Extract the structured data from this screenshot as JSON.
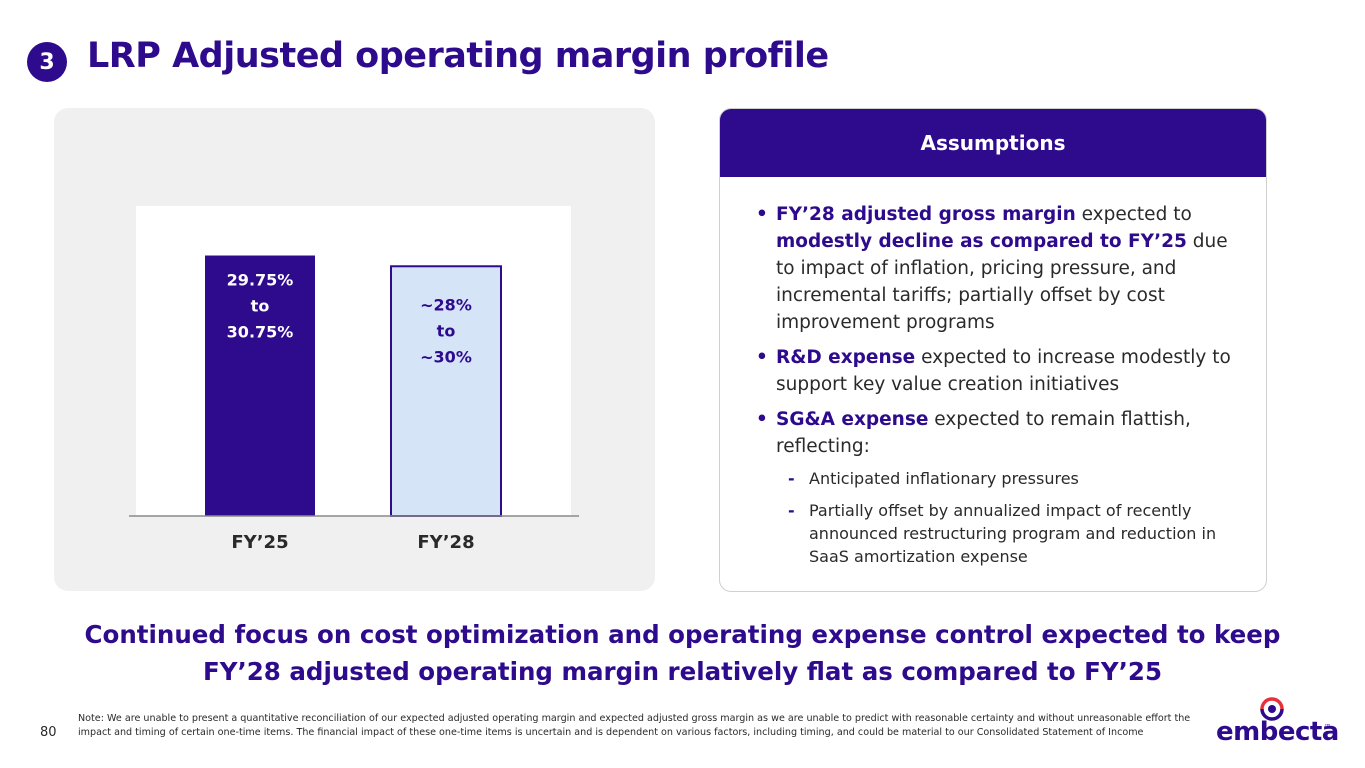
{
  "header": {
    "step_number": "3",
    "title": "LRP Adjusted operating margin profile"
  },
  "chart_data": {
    "type": "bar",
    "categories": [
      "FY’25",
      "FY’28"
    ],
    "series": [
      {
        "values": [
          30.25,
          29.0
        ]
      }
    ],
    "data_labels": [
      [
        "29.75%",
        "to",
        "30.75%"
      ],
      [
        "~28%",
        "to",
        "~30%"
      ]
    ],
    "ylim": [
      0,
      36
    ],
    "grid": false,
    "colors": {
      "fy25": "#2e0a8c",
      "fy28_fill": "#d6e4f8",
      "fy28_border": "#2e0a8c"
    }
  },
  "assumptions": {
    "title": "Assumptions",
    "bullets": [
      {
        "parts": [
          {
            "t": "FY’28 adjusted gross margin",
            "hl": true
          },
          {
            "t": " expected to ",
            "hl": false
          },
          {
            "t": "modestly decline as compared to FY’25",
            "hl": true
          },
          {
            "t": " due to impact of inflation, pricing pressure, and incremental tariffs; partially offset by cost improvement programs",
            "hl": false
          }
        ]
      },
      {
        "parts": [
          {
            "t": "R&D expense",
            "hl": true
          },
          {
            "t": " expected to increase modestly to support key value creation initiatives",
            "hl": false
          }
        ]
      },
      {
        "parts": [
          {
            "t": "SG&A expense",
            "hl": true
          },
          {
            "t": " expected to remain flattish, reflecting:",
            "hl": false
          }
        ],
        "sub": [
          "Anticipated inflationary pressures",
          "Partially offset by annualized impact of recently announced restructuring program and reduction in SaaS amortization expense"
        ]
      }
    ]
  },
  "conclusion": {
    "line1": "Continued focus on cost optimization and operating expense control expected to keep",
    "line2": "FY’28 adjusted operating margin relatively flat as compared to FY’25"
  },
  "footer": {
    "page_number": "80",
    "note": "Note: We are unable to present a quantitative reconciliation of our expected adjusted operating margin and expected adjusted gross margin as we are unable to predict with reasonable certainty and without unreasonable effort the impact and timing of certain one-time items. The financial impact of these one-time items is uncertain and is dependent on various factors, including timing, and could be material to our Consolidated Statement of Income",
    "logo_text": "embecta",
    "logo_tm": "™",
    "logo_colors": {
      "ring_top": "#e8303a",
      "ring_bottom": "#2e0a8c",
      "dot": "#2e0a8c"
    }
  }
}
